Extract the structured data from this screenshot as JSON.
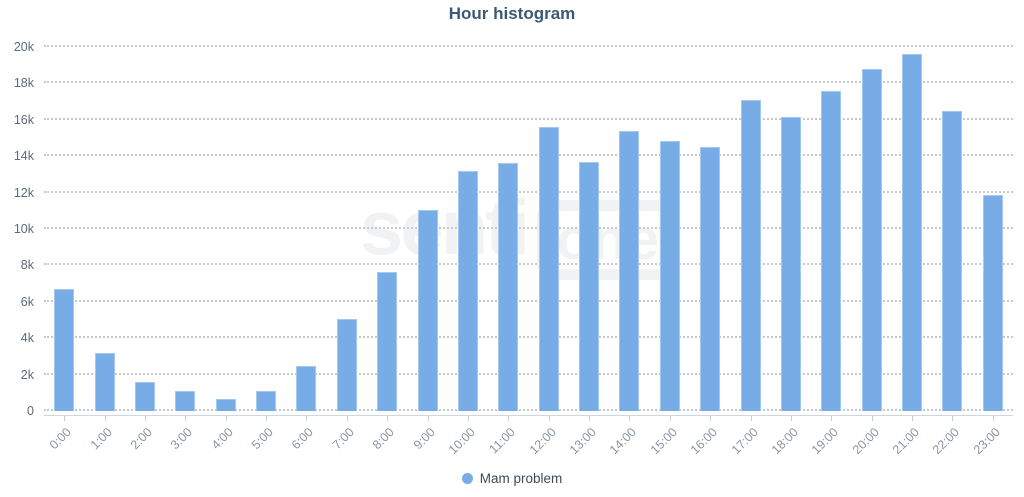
{
  "chart": {
    "title": "Hour histogram",
    "legend_label": "Mam problem",
    "watermark": {
      "prefix": "senti",
      "suffix": "one"
    },
    "colors": {
      "bar": "#77ace7",
      "bar_border": "#a5c8ef",
      "title_text": "#3c5a77",
      "axis_label_text": "#8a96a5",
      "grid_dots": "#c9c9c9"
    }
  },
  "chart_data": {
    "type": "bar",
    "title": "Hour histogram",
    "categories": [
      "0:00",
      "1:00",
      "2:00",
      "3:00",
      "4:00",
      "5:00",
      "6:00",
      "7:00",
      "8:00",
      "9:00",
      "10:00",
      "11:00",
      "12:00",
      "13:00",
      "14:00",
      "15:00",
      "16:00",
      "17:00",
      "18:00",
      "19:00",
      "20:00",
      "21:00",
      "22:00",
      "23:00"
    ],
    "series": [
      {
        "name": "Mam problem",
        "values": [
          6700,
          3200,
          1600,
          1100,
          680,
          1100,
          2500,
          5050,
          7650,
          11050,
          13200,
          13600,
          15600,
          13700,
          15400,
          14850,
          14500,
          17100,
          16150,
          17600,
          18800,
          19600,
          16500,
          11850
        ]
      }
    ],
    "xlabel": "",
    "ylabel": "",
    "ylim": [
      0,
      20000
    ],
    "ytick_labels": [
      "0",
      "2k",
      "4k",
      "6k",
      "8k",
      "10k",
      "12k",
      "14k",
      "16k",
      "18k",
      "20k"
    ],
    "grid": "horizontal-dotted",
    "legend_position": "bottom-center"
  }
}
